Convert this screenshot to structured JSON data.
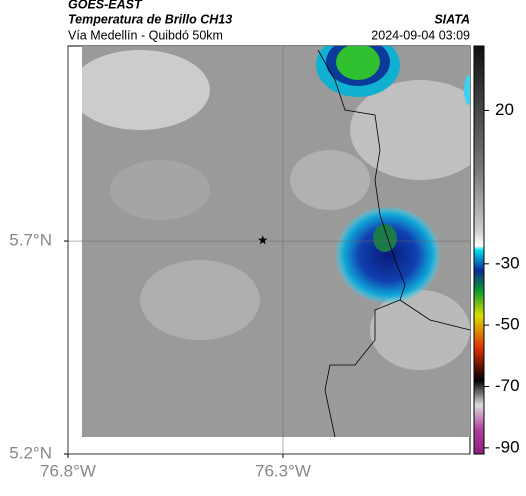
{
  "header": {
    "source": "GOES-EAST",
    "title": "Temperatura de Brillo CH13",
    "subtitle": "Vía Medellín - Quibdó 50km",
    "org": "SIATA",
    "datetime": "2024-09-04 03:09"
  },
  "map": {
    "xlim": [
      -76.8,
      -75.865
    ],
    "ylim": [
      5.2,
      6.158
    ],
    "xticks": [
      {
        "value": -76.8,
        "label": "76.8°W"
      },
      {
        "value": -76.3,
        "label": "76.3°W"
      }
    ],
    "yticks": [
      {
        "value": 5.2,
        "label": "5.2°N"
      },
      {
        "value": 5.7,
        "label": "5.7°N"
      }
    ],
    "grid": true,
    "marker": {
      "lon": -76.347,
      "lat": 5.702
    }
  },
  "colorbar": {
    "lim": [
      -92,
      41
    ],
    "ticks": [
      20,
      -30,
      -50,
      -70,
      -90
    ]
  }
}
